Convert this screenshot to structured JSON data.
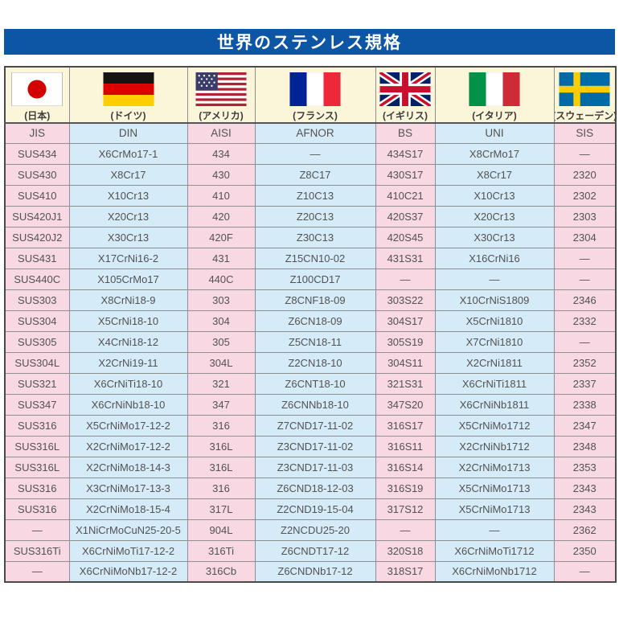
{
  "title": "世界のステンレス規格",
  "colors": {
    "banner_blue": "#0d56a6",
    "header_cream": "#fbf6da",
    "column_pink": "#f8d9e3",
    "column_blue": "#d6ebf8",
    "cell_text": "#525252",
    "grid_line": "#8f8f8f"
  },
  "table": {
    "countries": [
      {
        "flag": "japan-flag",
        "label": "(日本)",
        "code": "JIS"
      },
      {
        "flag": "germany-flag",
        "label": "(ドイツ)",
        "code": "DIN"
      },
      {
        "flag": "usa-flag",
        "label": "(アメリカ)",
        "code": "AISI"
      },
      {
        "flag": "france-flag",
        "label": "(フランス)",
        "code": "AFNOR"
      },
      {
        "flag": "uk-flag",
        "label": "(イギリス)",
        "code": "BS"
      },
      {
        "flag": "italy-flag",
        "label": "(イタリア)",
        "code": "UNI"
      },
      {
        "flag": "sweden-flag",
        "label": "(スウェーデン)",
        "code": "SIS"
      }
    ],
    "rows": [
      [
        "SUS434",
        "X6CrMo17-1",
        "434",
        "—",
        "434S17",
        "X8CrMo17",
        "—"
      ],
      [
        "SUS430",
        "X8Cr17",
        "430",
        "Z8C17",
        "430S17",
        "X8Cr17",
        "2320"
      ],
      [
        "SUS410",
        "X10Cr13",
        "410",
        "Z10C13",
        "410C21",
        "X10Cr13",
        "2302"
      ],
      [
        "SUS420J1",
        "X20Cr13",
        "420",
        "Z20C13",
        "420S37",
        "X20Cr13",
        "2303"
      ],
      [
        "SUS420J2",
        "X30Cr13",
        "420F",
        "Z30C13",
        "420S45",
        "X30Cr13",
        "2304"
      ],
      [
        "SUS431",
        "X17CrNi16-2",
        "431",
        "Z15CN10-02",
        "431S31",
        "X16CrNi16",
        "—"
      ],
      [
        "SUS440C",
        "X105CrMo17",
        "440C",
        "Z100CD17",
        "—",
        "—",
        "—"
      ],
      [
        "SUS303",
        "X8CrNi18-9",
        "303",
        "Z8CNF18-09",
        "303S22",
        "X10CrNiS1809",
        "2346"
      ],
      [
        "SUS304",
        "X5CrNi18-10",
        "304",
        "Z6CN18-09",
        "304S17",
        "X5CrNi1810",
        "2332"
      ],
      [
        "SUS305",
        "X4CrNi18-12",
        "305",
        "Z5CN18-11",
        "305S19",
        "X7CrNi1810",
        "—"
      ],
      [
        "SUS304L",
        "X2CrNi19-11",
        "304L",
        "Z2CN18-10",
        "304S11",
        "X2CrNi1811",
        "2352"
      ],
      [
        "SUS321",
        "X6CrNiTi18-10",
        "321",
        "Z6CNT18-10",
        "321S31",
        "X6CrNiTi1811",
        "2337"
      ],
      [
        "SUS347",
        "X6CrNiNb18-10",
        "347",
        "Z6CNNb18-10",
        "347S20",
        "X6CrNiNb1811",
        "2338"
      ],
      [
        "SUS316",
        "X5CrNiMo17-12-2",
        "316",
        "Z7CND17-11-02",
        "316S17",
        "X5CrNiMo1712",
        "2347"
      ],
      [
        "SUS316L",
        "X2CrNiMo17-12-2",
        "316L",
        "Z3CND17-11-02",
        "316S11",
        "X2CrNiNb1712",
        "2348"
      ],
      [
        "SUS316L",
        "X2CrNiMo18-14-3",
        "316L",
        "Z3CND17-11-03",
        "316S14",
        "X2CrNiMo1713",
        "2353"
      ],
      [
        "SUS316",
        "X3CrNiMo17-13-3",
        "316",
        "Z6CND18-12-03",
        "316S19",
        "X5CrNiMo1713",
        "2343"
      ],
      [
        "SUS316",
        "X2CrNiMo18-15-4",
        "317L",
        "Z2CND19-15-04",
        "317S12",
        "X5CrNiMo1713",
        "2343"
      ],
      [
        "—",
        "X1NiCrMoCuN25-20-5",
        "904L",
        "Z2NCDU25-20",
        "—",
        "—",
        "2362"
      ],
      [
        "SUS316Ti",
        "X6CrNiMoTi17-12-2",
        "316Ti",
        "Z6CNDT17-12",
        "320S18",
        "X6CrNiMoTi1712",
        "2350"
      ],
      [
        "—",
        "X6CrNiMoNb17-12-2",
        "316Cb",
        "Z6CNDNb17-12",
        "318S17",
        "X6CrNiMoNb1712",
        "—"
      ]
    ]
  }
}
